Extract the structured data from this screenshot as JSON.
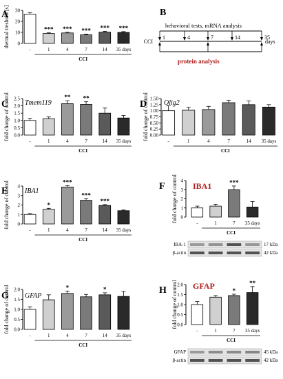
{
  "panels": [
    {
      "letter": "A",
      "ylabel": "thermal treshold [s]",
      "chart": {
        "type": "bar",
        "categories": [
          "-",
          "1",
          "4",
          "7",
          "14",
          "35 days"
        ],
        "values": [
          26.5,
          9.0,
          9.5,
          7.8,
          10.2,
          10.0
        ],
        "errors": [
          1.5,
          0.6,
          0.6,
          0.7,
          0.8,
          0.7
        ],
        "sig": [
          "",
          "***",
          "***",
          "***",
          "***",
          "***"
        ],
        "ylim": [
          0,
          30
        ],
        "yticks": [
          0,
          10,
          20,
          30
        ],
        "group_label": "CCI",
        "title": ""
      }
    },
    {
      "letter": "C",
      "title": "Tmem119",
      "ylabel": "fold change of control",
      "chart": {
        "type": "bar",
        "categories": [
          "-",
          "1",
          "4",
          "7",
          "14",
          "35 days"
        ],
        "values": [
          1.0,
          1.12,
          2.15,
          2.1,
          1.5,
          1.17
        ],
        "errors": [
          0.15,
          0.12,
          0.2,
          0.18,
          0.35,
          0.17
        ],
        "sig": [
          "",
          "",
          "**",
          "**",
          "",
          ""
        ],
        "ylim": [
          0,
          2.5
        ],
        "yticks": [
          0.0,
          0.5,
          1.0,
          1.5,
          2.0,
          2.5
        ],
        "group_label": "CCI"
      }
    },
    {
      "letter": "D",
      "title": "Olig2",
      "ylabel": "fold change of control",
      "chart": {
        "type": "bar",
        "categories": [
          "-",
          "1",
          "4",
          "7",
          "14",
          "35 days"
        ],
        "values": [
          1.0,
          1.02,
          1.05,
          1.33,
          1.25,
          1.15
        ],
        "errors": [
          0.2,
          0.12,
          0.13,
          0.1,
          0.15,
          0.1
        ],
        "sig": [
          "",
          "",
          "",
          "",
          "",
          ""
        ],
        "ylim": [
          0,
          1.5
        ],
        "yticks": [
          0.0,
          0.25,
          0.5,
          0.75,
          1.0,
          1.25,
          1.5
        ],
        "group_label": "CCI"
      }
    },
    {
      "letter": "E",
      "title": "IBA1",
      "ylabel": "fold change of control",
      "chart": {
        "type": "bar",
        "categories": [
          "-",
          "1",
          "4",
          "7",
          "14",
          "35 days"
        ],
        "values": [
          1.0,
          1.55,
          3.9,
          2.5,
          1.95,
          1.4
        ],
        "errors": [
          0.1,
          0.1,
          0.15,
          0.15,
          0.1,
          0.07
        ],
        "sig": [
          "",
          "*",
          "***",
          "***",
          "***",
          ""
        ],
        "ylim": [
          0,
          4
        ],
        "yticks": [
          0,
          1,
          2,
          3,
          4
        ],
        "group_label": "CCI"
      }
    },
    {
      "letter": "F",
      "title": "IBA1",
      "ylabel": "fold change of control",
      "chart": {
        "type": "bar",
        "categories": [
          "-",
          "1",
          "7",
          "35 days"
        ],
        "values": [
          1.0,
          1.2,
          3.0,
          1.1
        ],
        "errors": [
          0.2,
          0.2,
          0.4,
          0.6
        ],
        "sig": [
          "",
          "",
          "***",
          ""
        ],
        "ylim": [
          0,
          4
        ],
        "yticks": [
          0,
          1,
          2,
          3,
          4
        ],
        "group_label": "CCI"
      },
      "blot": [
        {
          "name": "IBA-1",
          "kda": "17 kDa"
        },
        {
          "name": "β-actin",
          "kda": "42 kDa"
        }
      ]
    },
    {
      "letter": "G",
      "title": "GFAP",
      "ylabel": "fold change of control",
      "chart": {
        "type": "bar",
        "categories": [
          "-",
          "1",
          "4",
          "7",
          "14",
          "35 days"
        ],
        "values": [
          1.0,
          1.48,
          1.8,
          1.63,
          1.73,
          1.65
        ],
        "errors": [
          0.13,
          0.25,
          0.12,
          0.12,
          0.1,
          0.25
        ],
        "sig": [
          "",
          "",
          "*",
          "",
          "*",
          ""
        ],
        "ylim": [
          0,
          2.0
        ],
        "yticks": [
          0.0,
          0.5,
          1.0,
          1.5,
          2.0
        ],
        "group_label": "CCI"
      }
    },
    {
      "letter": "H",
      "title": "GFAP",
      "ylabel": "fold change of control",
      "chart": {
        "type": "bar",
        "categories": [
          "-",
          "1",
          "7",
          "35 days"
        ],
        "values": [
          1.0,
          1.37,
          1.45,
          1.6
        ],
        "errors": [
          0.15,
          0.08,
          0.07,
          0.3
        ],
        "sig": [
          "",
          "",
          "*",
          "**"
        ],
        "ylim": [
          0,
          2.0
        ],
        "yticks": [
          0.0,
          0.5,
          1.0,
          1.5,
          2.0
        ],
        "group_label": "CCI"
      },
      "blot": [
        {
          "name": "GFAP",
          "kda": "45 kDa"
        },
        {
          "name": "β-actin",
          "kda": "42 kDa"
        }
      ]
    }
  ],
  "timeline": {
    "letter": "B",
    "top_text": "behavioral tests, mRNA analysis",
    "bottom_text": "protein analysis",
    "start_label": "CCI",
    "ticks": [
      "1",
      "4",
      "7",
      "14",
      "35"
    ],
    "unit": "days"
  },
  "colors": {
    "bars": [
      "#ffffff",
      "#d0d0d0",
      "#9a9a9a",
      "#7a7a7a",
      "#5a5a5a",
      "#2a2a2a"
    ],
    "bars_wb": [
      "#ffffff",
      "#d0d0d0",
      "#7a7a7a",
      "#2a2a2a"
    ],
    "red": "#b02020"
  }
}
